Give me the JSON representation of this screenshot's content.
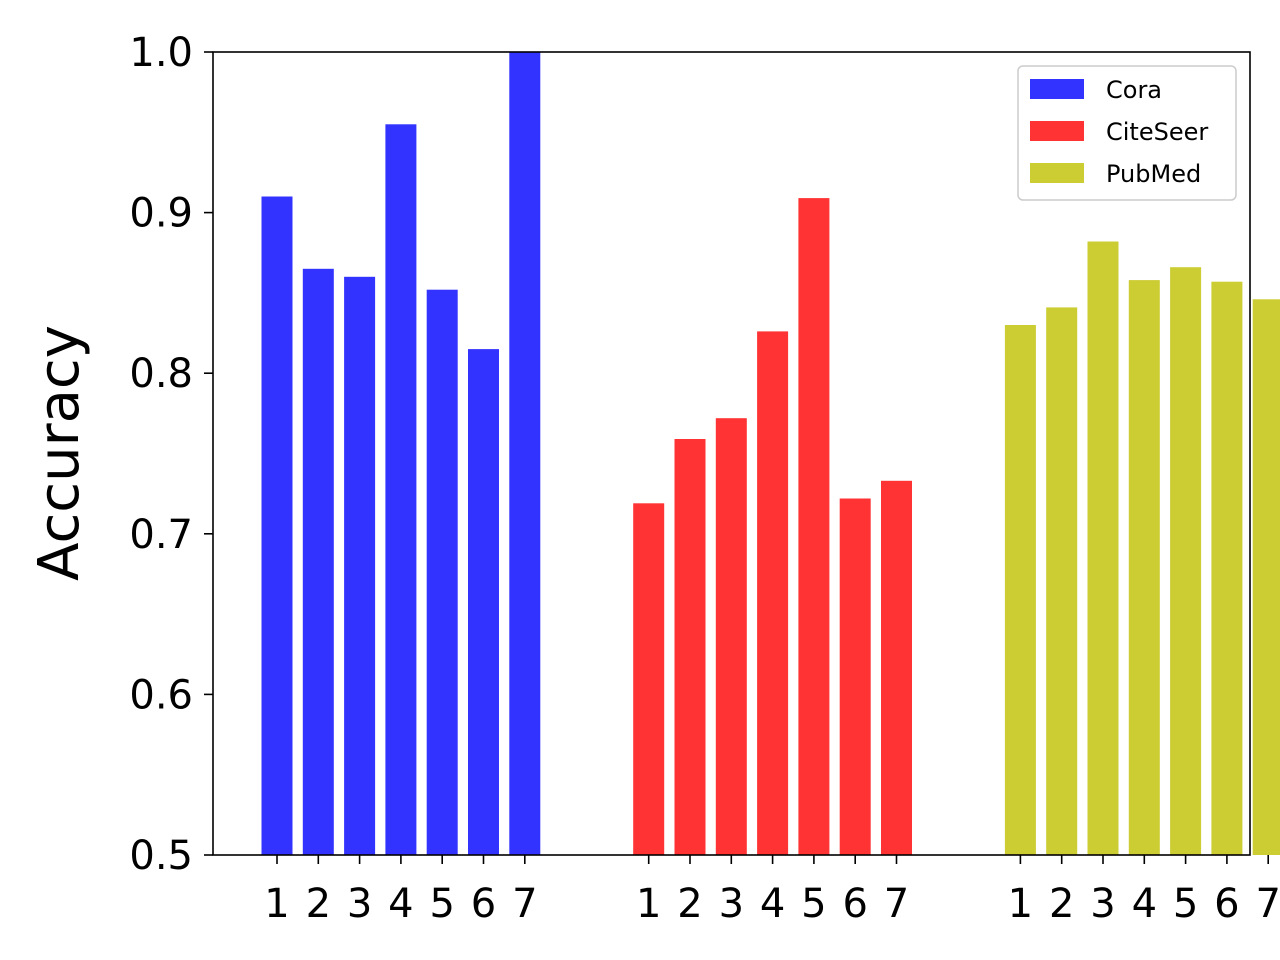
{
  "chart_data": {
    "type": "bar",
    "title": "",
    "xlabel": "",
    "ylabel": "Accuracy",
    "ylim": [
      0.5,
      1.0
    ],
    "yticks": [
      "0.5",
      "0.6",
      "0.7",
      "0.8",
      "0.9",
      "1.0"
    ],
    "categories": [
      "1",
      "2",
      "3",
      "4",
      "5",
      "6",
      "7"
    ],
    "grid": false,
    "legend_position": "top-right",
    "series": [
      {
        "name": "Cora",
        "color": "#3333ff",
        "values": [
          0.91,
          0.865,
          0.86,
          0.955,
          0.852,
          0.815,
          1.0
        ]
      },
      {
        "name": "CiteSeer",
        "color": "#ff3333",
        "values": [
          0.719,
          0.759,
          0.772,
          0.826,
          0.909,
          0.722,
          0.733
        ]
      },
      {
        "name": "PubMed",
        "color": "#cccc33",
        "values": [
          0.83,
          0.841,
          0.882,
          0.858,
          0.866,
          0.857,
          0.846
        ]
      }
    ]
  }
}
